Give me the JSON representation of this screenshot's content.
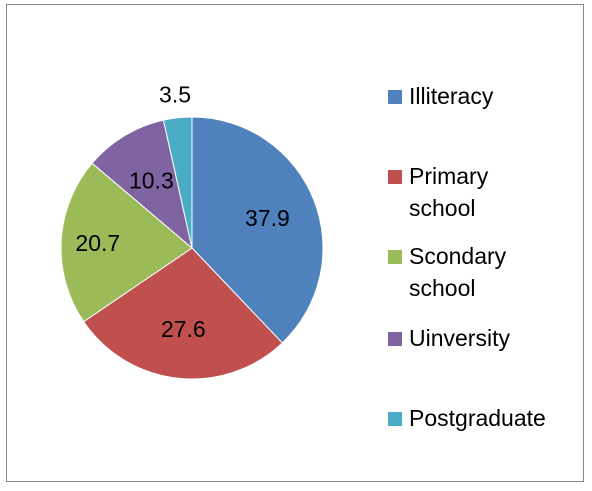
{
  "chart_data": {
    "type": "pie",
    "categories": [
      "Illiteracy",
      "Primary school",
      "Scondary school",
      "Uinversity",
      "Postgraduate"
    ],
    "values": [
      37.9,
      27.6,
      20.7,
      10.3,
      3.5
    ],
    "data_labels": [
      "37.9",
      "27.6",
      "20.7",
      "10.3",
      "3.5"
    ],
    "colors": [
      "#4f81bd",
      "#c0504d",
      "#9bbb59",
      "#8064a2",
      "#4bacc6"
    ],
    "legend_position": "right",
    "start_angle_deg": 0,
    "direction": "clockwise"
  },
  "legend": {
    "items": [
      {
        "label": "Illiteracy",
        "color": "#4f81bd"
      },
      {
        "label": "Primary school",
        "color": "#c0504d"
      },
      {
        "label": "Scondary school",
        "color": "#9bbb59"
      },
      {
        "label": "Uinversity",
        "color": "#8064a2"
      },
      {
        "label": "Postgraduate",
        "color": "#4bacc6"
      }
    ]
  }
}
